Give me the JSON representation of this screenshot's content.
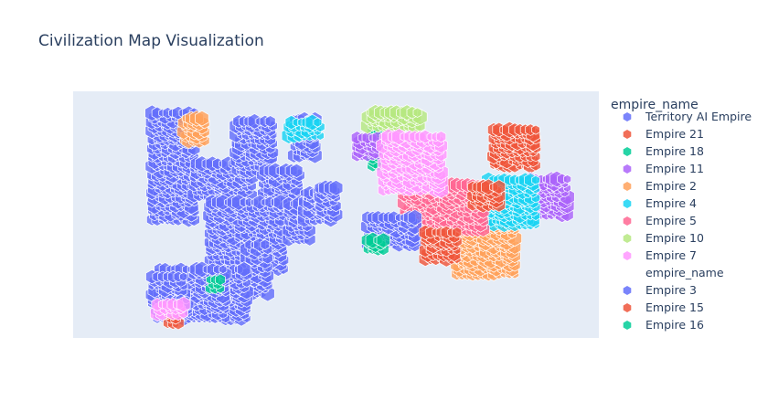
{
  "chart_data": {
    "type": "scatter",
    "title": "Civilization Map Visualization",
    "legend_title": "empire_name",
    "legend_position": "right",
    "grid": false,
    "xlim": [
      0,
      100
    ],
    "ylim": [
      0,
      50
    ],
    "marker": "hexagon",
    "series": [
      {
        "name": "Territory AI Empire",
        "color": "#636efa",
        "opacity": 0.82,
        "regions": [
          {
            "x": [
              15,
              23
            ],
            "y": [
              24,
              46
            ]
          },
          {
            "x": [
              23,
              34
            ],
            "y": [
              29,
              36
            ]
          },
          {
            "x": [
              31,
              38
            ],
            "y": [
              34,
              44
            ]
          },
          {
            "x": [
              36,
              43
            ],
            "y": [
              24,
              34
            ]
          },
          {
            "x": [
              26,
              40
            ],
            "y": [
              14,
              28
            ]
          },
          {
            "x": [
              41,
              45
            ],
            "y": [
              20,
              28
            ]
          },
          {
            "x": [
              44,
              49
            ],
            "y": [
              24,
              30
            ]
          },
          {
            "x": [
              47,
              50
            ],
            "y": [
              25,
              31
            ]
          },
          {
            "x": [
              42,
              46
            ],
            "y": [
              37,
              45
            ]
          },
          {
            "x": [
              33,
              37
            ],
            "y": [
              9,
              19
            ]
          },
          {
            "x": [
              29,
              33
            ],
            "y": [
              4,
              14
            ]
          },
          {
            "x": [
              16,
              29
            ],
            "y": [
              4,
              14
            ]
          },
          {
            "x": [
              15,
              21
            ],
            "y": [
              7,
              13
            ]
          },
          {
            "x": [
              18,
              22
            ],
            "y": [
              5,
              8
            ]
          }
        ]
      },
      {
        "name": "Empire 21",
        "color": "#ef553b",
        "opacity": 0.82,
        "regions": [
          {
            "x": [
              80,
              88
            ],
            "y": [
              35,
              43
            ]
          },
          {
            "x": [
              18,
              20
            ],
            "y": [
              3,
              5
            ]
          }
        ]
      },
      {
        "name": "Empire 18",
        "color": "#00cc96",
        "opacity": 0.82,
        "regions": [
          {
            "x": [
              57,
              58
            ],
            "y": [
              35,
              43
            ]
          }
        ]
      },
      {
        "name": "Empire 11",
        "color": "#ab63fa",
        "opacity": 0.82,
        "regions": [
          {
            "x": [
              54,
              58
            ],
            "y": [
              37,
              41
            ]
          },
          {
            "x": [
              87,
              94
            ],
            "y": [
              25,
              33
            ]
          }
        ]
      },
      {
        "name": "Empire 2",
        "color": "#ffa15a",
        "opacity": 0.82,
        "regions": [
          {
            "x": [
              21,
              25
            ],
            "y": [
              40,
              45
            ]
          },
          {
            "x": [
              73,
              84
            ],
            "y": [
              13,
              23
            ]
          }
        ]
      },
      {
        "name": "Empire 4",
        "color": "#19d3f3",
        "opacity": 0.82,
        "regions": [
          {
            "x": [
              79,
              88
            ],
            "y": [
              23,
              32
            ]
          },
          {
            "x": [
              41,
              47
            ],
            "y": [
              41,
              44
            ]
          }
        ]
      },
      {
        "name": "Empire 5",
        "color": "#ff6692",
        "opacity": 0.82,
        "regions": [
          {
            "x": [
              63,
              78
            ],
            "y": [
              22,
              31
            ]
          }
        ]
      },
      {
        "name": "Empire 10",
        "color": "#b6e880",
        "opacity": 0.82,
        "regions": [
          {
            "x": [
              56,
              66
            ],
            "y": [
              43,
              46
            ]
          }
        ]
      },
      {
        "name": "Empire 7",
        "color": "#ff97ff",
        "opacity": 0.82,
        "regions": [
          {
            "x": [
              59,
              70
            ],
            "y": [
              30,
              41
            ]
          },
          {
            "x": [
              16,
              21
            ],
            "y": [
              5,
              7
            ]
          }
        ]
      },
      {
        "name": "Empire 3",
        "color": "#636efa",
        "opacity": 0.82,
        "regions": [
          {
            "x": [
              56,
              65
            ],
            "y": [
              19,
              25
            ]
          }
        ]
      },
      {
        "name": "Empire 15",
        "color": "#ef553b",
        "opacity": 0.82,
        "regions": [
          {
            "x": [
              67,
              73
            ],
            "y": [
              16,
              22
            ]
          },
          {
            "x": [
              76,
              81
            ],
            "y": [
              27,
              31
            ]
          }
        ]
      },
      {
        "name": "Empire 16",
        "color": "#00cc96",
        "opacity": 0.82,
        "regions": [
          {
            "x": [
              56,
              59
            ],
            "y": [
              18,
              20
            ]
          },
          {
            "x": [
              26,
              28
            ],
            "y": [
              10,
              12
            ]
          }
        ]
      }
    ],
    "legend_items": [
      {
        "label": "Territory AI Empire",
        "color": "#636efa",
        "kind": "marker"
      },
      {
        "label": "Empire 21",
        "color": "#ef553b",
        "kind": "marker"
      },
      {
        "label": "Empire 18",
        "color": "#00cc96",
        "kind": "marker"
      },
      {
        "label": "Empire 11",
        "color": "#ab63fa",
        "kind": "marker"
      },
      {
        "label": "Empire 2",
        "color": "#ffa15a",
        "kind": "marker"
      },
      {
        "label": "Empire 4",
        "color": "#19d3f3",
        "kind": "marker"
      },
      {
        "label": "Empire 5",
        "color": "#ff6692",
        "kind": "marker"
      },
      {
        "label": "Empire 10",
        "color": "#b6e880",
        "kind": "marker"
      },
      {
        "label": "Empire 7",
        "color": "#ff97ff",
        "kind": "marker"
      },
      {
        "label": "empire_name",
        "color": "",
        "kind": "subtitle"
      },
      {
        "label": "Empire 3",
        "color": "#636efa",
        "kind": "marker"
      },
      {
        "label": "Empire 15",
        "color": "#ef553b",
        "kind": "marker"
      },
      {
        "label": "Empire 16",
        "color": "#00cc96",
        "kind": "marker"
      }
    ],
    "plot_background": "#e5ecf6"
  }
}
